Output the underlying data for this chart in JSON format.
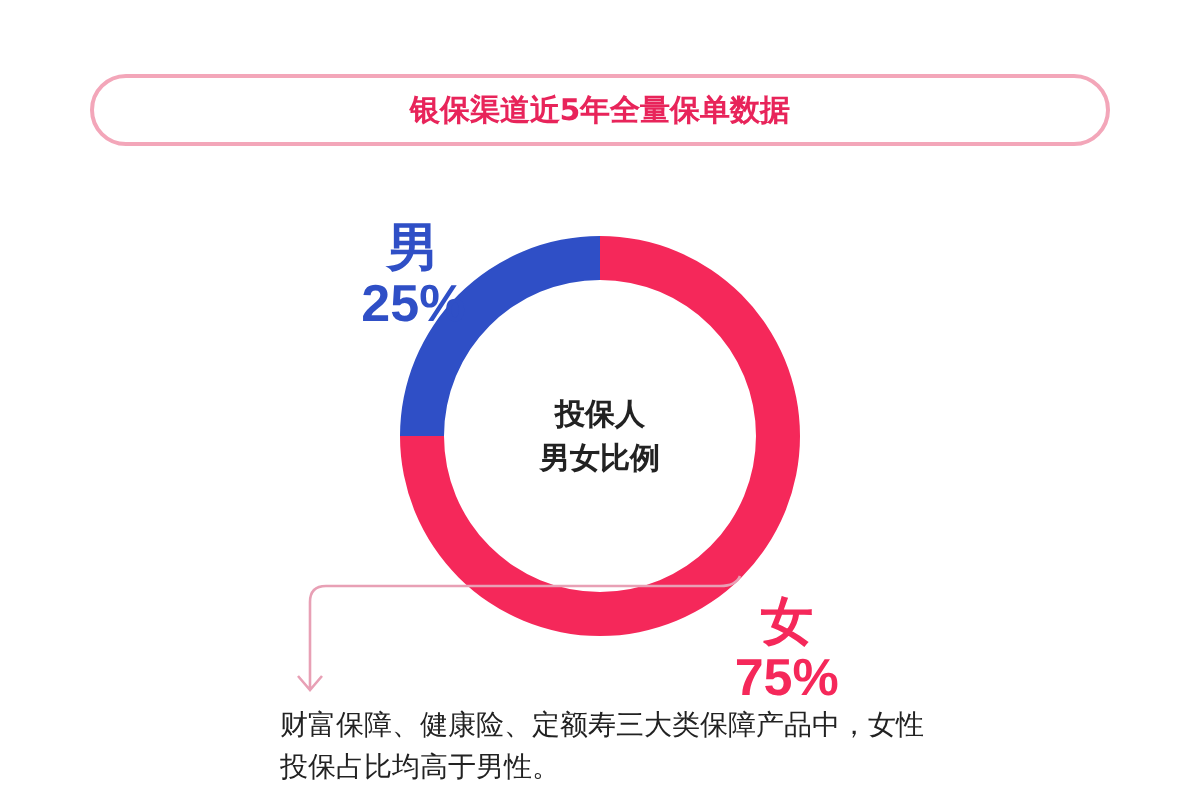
{
  "chart_data": {
    "type": "donut",
    "title": "银保渠道近5年全量保单数据",
    "categories": [
      "女",
      "男"
    ],
    "values": [
      75,
      25
    ],
    "colors": [
      "#f5285a",
      "#2f4fc6"
    ],
    "value_labels": [
      "75%",
      "25%"
    ],
    "annotations": [
      "投保人",
      "男女比例",
      "财富保障、健康险、定额寿三大类保障产品中，女性投保占比均高于男性。"
    ]
  }
}
